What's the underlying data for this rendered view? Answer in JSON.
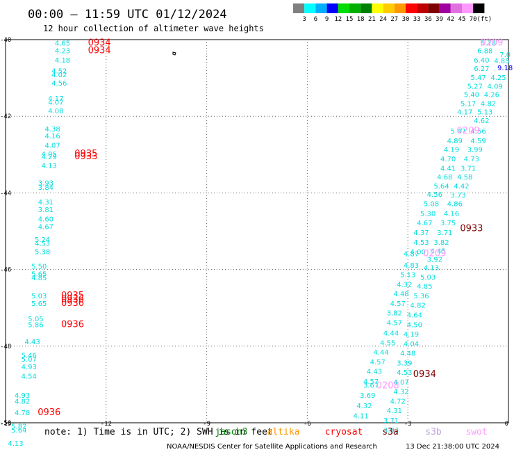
{
  "title": "00:00 — 11:59 UTC 01/12/2024",
  "subtitle": "12 hour collection of altimeter wave heights",
  "colorbar": {
    "labels": [
      "3",
      "6",
      "9",
      "12",
      "15",
      "18",
      "21",
      "24",
      "27",
      "30",
      "33",
      "36",
      "39",
      "42",
      "45",
      "70",
      "(ft)"
    ],
    "colors": [
      "#808080",
      "#00ffff",
      "#00b0ff",
      "#0000ff",
      "#00dd00",
      "#00b000",
      "#008000",
      "#ffff00",
      "#ffcc00",
      "#ff9900",
      "#ff0000",
      "#c00000",
      "#800000",
      "#a000a0",
      "#e070e0",
      "#ff99ff",
      "#000000"
    ]
  },
  "footer": {
    "note": "note:  1) Time is in UTC; 2) SWH is in feet",
    "satellites": [
      {
        "name": "jason3",
        "color": "#008000"
      },
      {
        "name": "altika",
        "color": "#ff9900"
      },
      {
        "name": "cryosat",
        "color": "#ff0000"
      },
      {
        "name": "s3a",
        "color": "#800000"
      },
      {
        "name": "s3b",
        "color": "#c0a0e0"
      },
      {
        "name": "swot",
        "color": "#ff99ff"
      }
    ],
    "credit": "NOAA/NESDIS Center for Satellite Applications and Research",
    "generated": "13 Dec 21:38:00 UTC 2024"
  },
  "chart_data": {
    "type": "scatter",
    "xlim": [
      -15,
      0
    ],
    "ylim": [
      -50,
      -40
    ],
    "x_ticks": [
      "-15",
      "-12",
      "-9",
      "-6",
      "-3",
      "0"
    ],
    "y_ticks": [
      "-40",
      "-42",
      "-44",
      "-46",
      "-48",
      "-50"
    ],
    "grid": true,
    "wave_heights": [
      {
        "x": -13.3,
        "y": -40.15,
        "v": "4.65",
        "c": "#00dddd"
      },
      {
        "x": -13.3,
        "y": -40.35,
        "v": "4.23",
        "c": "#00dddd"
      },
      {
        "x": -13.3,
        "y": -40.6,
        "v": "4.18",
        "c": "#00dddd"
      },
      {
        "x": -13.4,
        "y": -40.88,
        "v": "4.52",
        "c": "#00dddd"
      },
      {
        "x": -13.4,
        "y": -40.98,
        "v": "4.02",
        "c": "#00dddd"
      },
      {
        "x": -13.4,
        "y": -41.2,
        "v": "4.56",
        "c": "#00dddd"
      },
      {
        "x": -13.5,
        "y": -41.6,
        "v": "4.17",
        "c": "#00dddd"
      },
      {
        "x": -13.5,
        "y": -41.7,
        "v": "4.07",
        "c": "#00dddd"
      },
      {
        "x": -13.5,
        "y": -41.92,
        "v": "4.08",
        "c": "#00dddd"
      },
      {
        "x": -13.6,
        "y": -42.4,
        "v": "4.38",
        "c": "#00dddd"
      },
      {
        "x": -13.6,
        "y": -42.58,
        "v": "4.16",
        "c": "#00dddd"
      },
      {
        "x": -13.6,
        "y": -42.82,
        "v": "4.07",
        "c": "#00dddd"
      },
      {
        "x": -13.7,
        "y": -43.05,
        "v": "4.05",
        "c": "#00dddd"
      },
      {
        "x": -13.7,
        "y": -43.12,
        "v": "4.29",
        "c": "#00dddd"
      },
      {
        "x": -13.7,
        "y": -43.35,
        "v": "4.13",
        "c": "#00dddd"
      },
      {
        "x": -13.8,
        "y": -43.8,
        "v": "3.93",
        "c": "#00dddd"
      },
      {
        "x": -13.8,
        "y": -43.92,
        "v": "3.84",
        "c": "#00dddd"
      },
      {
        "x": -13.8,
        "y": -44.3,
        "v": "4.31",
        "c": "#00dddd"
      },
      {
        "x": -13.8,
        "y": -44.5,
        "v": "3.81",
        "c": "#00dddd"
      },
      {
        "x": -13.8,
        "y": -44.75,
        "v": "4.60",
        "c": "#00dddd"
      },
      {
        "x": -13.8,
        "y": -44.95,
        "v": "4.67",
        "c": "#00dddd"
      },
      {
        "x": -13.9,
        "y": -45.28,
        "v": "5.24",
        "c": "#00dddd"
      },
      {
        "x": -13.9,
        "y": -45.38,
        "v": "4.53",
        "c": "#00dddd"
      },
      {
        "x": -13.9,
        "y": -45.6,
        "v": "5.38",
        "c": "#00dddd"
      },
      {
        "x": -14.0,
        "y": -45.98,
        "v": "5.50",
        "c": "#00dddd"
      },
      {
        "x": -14.0,
        "y": -46.18,
        "v": "5.65",
        "c": "#00dddd"
      },
      {
        "x": -14.0,
        "y": -46.28,
        "v": "4.85",
        "c": "#00dddd"
      },
      {
        "x": -14.0,
        "y": -46.75,
        "v": "5.03",
        "c": "#00dddd"
      },
      {
        "x": -14.0,
        "y": -46.95,
        "v": "5.65",
        "c": "#00dddd"
      },
      {
        "x": -14.1,
        "y": -47.35,
        "v": "5.05",
        "c": "#00dddd"
      },
      {
        "x": -14.1,
        "y": -47.5,
        "v": "5.86",
        "c": "#00dddd"
      },
      {
        "x": -14.2,
        "y": -47.95,
        "v": "4.43",
        "c": "#00dddd"
      },
      {
        "x": -14.3,
        "y": -48.3,
        "v": "5.46",
        "c": "#00dddd"
      },
      {
        "x": -14.3,
        "y": -48.4,
        "v": "5.07",
        "c": "#00dddd"
      },
      {
        "x": -14.3,
        "y": -48.6,
        "v": "4.93",
        "c": "#00dddd"
      },
      {
        "x": -14.3,
        "y": -48.85,
        "v": "4.54",
        "c": "#00dddd"
      },
      {
        "x": -14.5,
        "y": -49.35,
        "v": "4.93",
        "c": "#00dddd"
      },
      {
        "x": -14.5,
        "y": -49.5,
        "v": "4.82",
        "c": "#00dddd"
      },
      {
        "x": -14.5,
        "y": -49.8,
        "v": "4.78",
        "c": "#00dddd"
      },
      {
        "x": -14.6,
        "y": -50.15,
        "v": "5.82",
        "c": "#00dddd"
      },
      {
        "x": -14.6,
        "y": -50.25,
        "v": "5.64",
        "c": "#00dddd"
      },
      {
        "x": -14.7,
        "y": -50.6,
        "v": "4.13",
        "c": "#00dddd"
      },
      {
        "x": -0.6,
        "y": -40.15,
        "v": "5.78",
        "c": "#00dddd"
      },
      {
        "x": -0.7,
        "y": -40.35,
        "v": "6.88",
        "c": "#00dddd"
      },
      {
        "x": -0.8,
        "y": -40.6,
        "v": "6.40",
        "c": "#00dddd"
      },
      {
        "x": -0.8,
        "y": -40.82,
        "v": "6.27",
        "c": "#00dddd"
      },
      {
        "x": -0.9,
        "y": -41.05,
        "v": "5.47",
        "c": "#00dddd"
      },
      {
        "x": -1.0,
        "y": -41.28,
        "v": "5.27",
        "c": "#00dddd"
      },
      {
        "x": -1.1,
        "y": -41.5,
        "v": "5.40",
        "c": "#00dddd"
      },
      {
        "x": -1.2,
        "y": -41.73,
        "v": "5.17",
        "c": "#00dddd"
      },
      {
        "x": -1.3,
        "y": -41.95,
        "v": "4.17",
        "c": "#00dddd"
      },
      {
        "x": -1.5,
        "y": -42.45,
        "v": "5.47",
        "c": "#00dddd"
      },
      {
        "x": -1.6,
        "y": -42.7,
        "v": "4.89",
        "c": "#00dddd"
      },
      {
        "x": -1.7,
        "y": -42.93,
        "v": "4.19",
        "c": "#00dddd"
      },
      {
        "x": -1.8,
        "y": -43.18,
        "v": "4.70",
        "c": "#00dddd"
      },
      {
        "x": -1.8,
        "y": -43.42,
        "v": "4.41",
        "c": "#00dddd"
      },
      {
        "x": -1.9,
        "y": -43.65,
        "v": "4.68",
        "c": "#00dddd"
      },
      {
        "x": -2.0,
        "y": -43.88,
        "v": "5.64",
        "c": "#00dddd"
      },
      {
        "x": -2.2,
        "y": -44.1,
        "v": "4.56",
        "c": "#00dddd"
      },
      {
        "x": -2.3,
        "y": -44.35,
        "v": "5.08",
        "c": "#00dddd"
      },
      {
        "x": -2.4,
        "y": -44.6,
        "v": "5.30",
        "c": "#00dddd"
      },
      {
        "x": -2.5,
        "y": -44.85,
        "v": "4.67",
        "c": "#00dddd"
      },
      {
        "x": -2.6,
        "y": -45.1,
        "v": "4.37",
        "c": "#00dddd"
      },
      {
        "x": -2.6,
        "y": -45.35,
        "v": "4.53",
        "c": "#00dddd"
      },
      {
        "x": -2.7,
        "y": -45.6,
        "v": "4.00",
        "c": "#00dddd"
      },
      {
        "x": -2.9,
        "y": -45.65,
        "v": "4.87",
        "c": "#00dddd"
      },
      {
        "x": -2.9,
        "y": -45.95,
        "v": "4.83",
        "c": "#00dddd"
      },
      {
        "x": -3.0,
        "y": -46.2,
        "v": "5.13",
        "c": "#00dddd"
      },
      {
        "x": -3.1,
        "y": -46.45,
        "v": "4.32",
        "c": "#00dddd"
      },
      {
        "x": -3.2,
        "y": -46.7,
        "v": "4.48",
        "c": "#00dddd"
      },
      {
        "x": -3.3,
        "y": -46.95,
        "v": "4.57",
        "c": "#00dddd"
      },
      {
        "x": -3.4,
        "y": -47.2,
        "v": "3.82",
        "c": "#00dddd"
      },
      {
        "x": -3.4,
        "y": -47.45,
        "v": "4.57",
        "c": "#00dddd"
      },
      {
        "x": -3.5,
        "y": -47.72,
        "v": "4.44",
        "c": "#00dddd"
      },
      {
        "x": -3.6,
        "y": -47.98,
        "v": "4.55",
        "c": "#00dddd"
      },
      {
        "x": -3.8,
        "y": -48.22,
        "v": "4.44",
        "c": "#00dddd"
      },
      {
        "x": -3.9,
        "y": -48.48,
        "v": "4.57",
        "c": "#00dddd"
      },
      {
        "x": -4.0,
        "y": -48.72,
        "v": "4.43",
        "c": "#00dddd"
      },
      {
        "x": -4.1,
        "y": -48.98,
        "v": "4.57",
        "c": "#00dddd"
      },
      {
        "x": -4.1,
        "y": -49.08,
        "v": "3.67",
        "c": "#00dddd"
      },
      {
        "x": -4.2,
        "y": -49.35,
        "v": "3.69",
        "c": "#00dddd"
      },
      {
        "x": -4.3,
        "y": -49.62,
        "v": "4.32",
        "c": "#00dddd"
      },
      {
        "x": -4.4,
        "y": -49.88,
        "v": "4.11",
        "c": "#00dddd"
      },
      {
        "x": -0.1,
        "y": -40.45,
        "v": "7.0",
        "c": "#00dddd"
      },
      {
        "x": -0.2,
        "y": -40.62,
        "v": "4.85",
        "c": "#00dddd"
      },
      {
        "x": -0.3,
        "y": -41.05,
        "v": "4.25",
        "c": "#00dddd"
      },
      {
        "x": -0.4,
        "y": -41.28,
        "v": "4.09",
        "c": "#00dddd"
      },
      {
        "x": -0.5,
        "y": -41.5,
        "v": "4.26",
        "c": "#00dddd"
      },
      {
        "x": -0.6,
        "y": -41.73,
        "v": "4.82",
        "c": "#00dddd"
      },
      {
        "x": -0.7,
        "y": -41.95,
        "v": "5.13",
        "c": "#00dddd"
      },
      {
        "x": -0.8,
        "y": -42.18,
        "v": "4.62",
        "c": "#00dddd"
      },
      {
        "x": -0.9,
        "y": -42.45,
        "v": "4.56",
        "c": "#00dddd"
      },
      {
        "x": -0.9,
        "y": -42.7,
        "v": "4.59",
        "c": "#00dddd"
      },
      {
        "x": -1.0,
        "y": -42.93,
        "v": "3.99",
        "c": "#00dddd"
      },
      {
        "x": -1.1,
        "y": -43.18,
        "v": "4.73",
        "c": "#00dddd"
      },
      {
        "x": -1.2,
        "y": -43.42,
        "v": "3.71",
        "c": "#00dddd"
      },
      {
        "x": -1.3,
        "y": -43.65,
        "v": "4.58",
        "c": "#00dddd"
      },
      {
        "x": -1.4,
        "y": -43.88,
        "v": "4.42",
        "c": "#00dddd"
      },
      {
        "x": -1.5,
        "y": -44.12,
        "v": "3.73",
        "c": "#00dddd"
      },
      {
        "x": -1.6,
        "y": -44.35,
        "v": "4.86",
        "c": "#00dddd"
      },
      {
        "x": -1.7,
        "y": -44.6,
        "v": "4.16",
        "c": "#00dddd"
      },
      {
        "x": -1.8,
        "y": -44.85,
        "v": "3.75",
        "c": "#00dddd"
      },
      {
        "x": -1.9,
        "y": -45.1,
        "v": "3.71",
        "c": "#00dddd"
      },
      {
        "x": -2.0,
        "y": -45.35,
        "v": "3.82",
        "c": "#00dddd"
      },
      {
        "x": -2.1,
        "y": -45.58,
        "v": "4.45",
        "c": "#00dddd"
      },
      {
        "x": -2.2,
        "y": -45.8,
        "v": "3.92",
        "c": "#00dddd"
      },
      {
        "x": -2.3,
        "y": -46.02,
        "v": "4.13",
        "c": "#00dddd"
      },
      {
        "x": -2.4,
        "y": -46.26,
        "v": "5.03",
        "c": "#00dddd"
      },
      {
        "x": -2.5,
        "y": -46.5,
        "v": "4.85",
        "c": "#00dddd"
      },
      {
        "x": -2.6,
        "y": -46.75,
        "v": "5.36",
        "c": "#00dddd"
      },
      {
        "x": -2.7,
        "y": -47.0,
        "v": "4.82",
        "c": "#00dddd"
      },
      {
        "x": -2.8,
        "y": -47.25,
        "v": "4.64",
        "c": "#00dddd"
      },
      {
        "x": -2.8,
        "y": -47.5,
        "v": "4.50",
        "c": "#00dddd"
      },
      {
        "x": -2.9,
        "y": -47.75,
        "v": "4.19",
        "c": "#00dddd"
      },
      {
        "x": -2.9,
        "y": -48.0,
        "v": "4.04",
        "c": "#00dddd"
      },
      {
        "x": -3.0,
        "y": -48.25,
        "v": "4.48",
        "c": "#00dddd"
      },
      {
        "x": -3.1,
        "y": -48.5,
        "v": "3.39",
        "c": "#00dddd"
      },
      {
        "x": -3.1,
        "y": -48.75,
        "v": "4.53",
        "c": "#00dddd"
      },
      {
        "x": -3.2,
        "y": -49.0,
        "v": "4.07",
        "c": "#00dddd"
      },
      {
        "x": -3.2,
        "y": -49.25,
        "v": "4.32",
        "c": "#00dddd"
      },
      {
        "x": -3.3,
        "y": -49.5,
        "v": "4.72",
        "c": "#00dddd"
      },
      {
        "x": -3.4,
        "y": -49.75,
        "v": "4.31",
        "c": "#00dddd"
      },
      {
        "x": -3.5,
        "y": -50.0,
        "v": "3.71",
        "c": "#00dddd"
      },
      {
        "x": -3.5,
        "y": -50.25,
        "v": "3.93",
        "c": "#00dddd"
      },
      {
        "x": -0.1,
        "y": -40.8,
        "v": "9.18",
        "c": "#0000ff"
      }
    ],
    "pass_times": [
      {
        "x": -12.2,
        "y": -40.15,
        "t": "0934",
        "c": "#ff0000"
      },
      {
        "x": -12.2,
        "y": -40.35,
        "t": "0934",
        "c": "#ff0000"
      },
      {
        "x": -12.6,
        "y": -43.05,
        "t": "0935",
        "c": "#ff0000"
      },
      {
        "x": -12.6,
        "y": -43.12,
        "t": "0933",
        "c": "#ff0000"
      },
      {
        "x": -13.0,
        "y": -46.75,
        "t": "0935",
        "c": "#ff0000"
      },
      {
        "x": -13.0,
        "y": -46.85,
        "t": "0936",
        "c": "#ff0000"
      },
      {
        "x": -13.0,
        "y": -46.95,
        "t": "0936",
        "c": "#ff0000"
      },
      {
        "x": -13.0,
        "y": -47.5,
        "t": "0936",
        "c": "#ff0000"
      },
      {
        "x": -13.7,
        "y": -49.8,
        "t": "0936",
        "c": "#ff0000"
      },
      {
        "x": -0.5,
        "y": -40.15,
        "t": "0209",
        "c": "#ff99ff"
      },
      {
        "x": -1.2,
        "y": -42.45,
        "t": "0209",
        "c": "#ff99ff"
      },
      {
        "x": -2.2,
        "y": -45.65,
        "t": "0209",
        "c": "#ff99ff"
      },
      {
        "x": -3.6,
        "y": -49.1,
        "t": "0208",
        "c": "#ff99ff"
      },
      {
        "x": -1.1,
        "y": -45.0,
        "t": "0933",
        "c": "#800000"
      },
      {
        "x": -2.5,
        "y": -48.8,
        "t": "0934",
        "c": "#800000"
      }
    ]
  }
}
